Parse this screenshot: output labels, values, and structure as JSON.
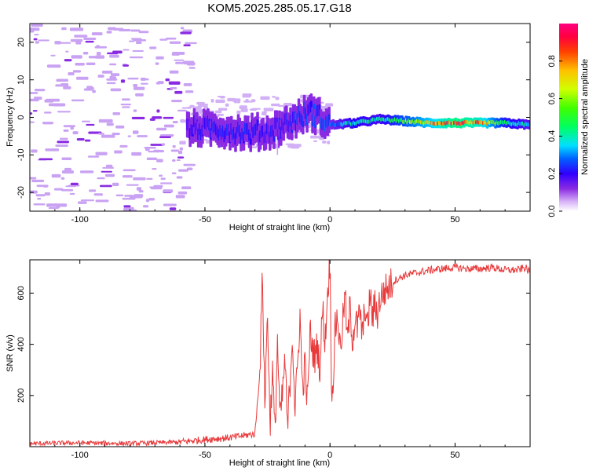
{
  "title": "KOM5.2025.285.05.17.G18",
  "chart_data": [
    {
      "type": "heatmap",
      "title": "KOM5.2025.285.05.17.G18",
      "xlabel": "Height of straight line (km)",
      "ylabel": "Frequency (Hz)",
      "xlim": [
        -120,
        80
      ],
      "ylim": [
        -25,
        25
      ],
      "xticks": [
        -100,
        -50,
        0,
        50
      ],
      "xtick_labels": [
        "-100",
        "-50",
        "0",
        "50"
      ],
      "yticks": [
        -20,
        -10,
        0,
        10,
        20
      ],
      "ytick_labels": [
        "-20",
        "-10",
        "0",
        "10",
        "20"
      ],
      "colorbar": {
        "label": "Normalized spectral amplitude",
        "range": [
          0,
          1
        ],
        "ticks": [
          0.0,
          0.2,
          0.4,
          0.6,
          0.8
        ],
        "tick_labels": [
          "0.0",
          "0.2",
          "0.4",
          "0.6",
          "0.8"
        ],
        "colors": [
          "#ffffff",
          "#d8b4f8",
          "#8a2be2",
          "#3000ff",
          "#0060ff",
          "#00e0ff",
          "#00ff60",
          "#40ff00",
          "#d0ff00",
          "#ffc000",
          "#ff4000",
          "#ff0040",
          "#ff0080"
        ]
      },
      "ridge": [
        {
          "x": -55,
          "y": -3,
          "a": 0.2
        },
        {
          "x": -45,
          "y": -3,
          "a": 0.22
        },
        {
          "x": -35,
          "y": -4,
          "a": 0.22
        },
        {
          "x": -25,
          "y": -4,
          "a": 0.2
        },
        {
          "x": -15,
          "y": -1,
          "a": 0.22
        },
        {
          "x": -8,
          "y": 1.5,
          "a": 0.25
        },
        {
          "x": -4,
          "y": 0,
          "a": 0.25
        },
        {
          "x": 0,
          "y": -2,
          "a": 0.28
        },
        {
          "x": 10,
          "y": -1.5,
          "a": 0.45
        },
        {
          "x": 20,
          "y": -0.5,
          "a": 0.4
        },
        {
          "x": 30,
          "y": -1,
          "a": 0.6
        },
        {
          "x": 40,
          "y": -1.5,
          "a": 0.75
        },
        {
          "x": 50,
          "y": -1.5,
          "a": 0.95
        },
        {
          "x": 60,
          "y": -1.5,
          "a": 0.85
        },
        {
          "x": 70,
          "y": -1.5,
          "a": 0.5
        },
        {
          "x": 80,
          "y": -2,
          "a": 0.35
        }
      ]
    },
    {
      "type": "line",
      "xlabel": "Height of straight line (km)",
      "ylabel": "SNR (v/v)",
      "xlim": [
        -120,
        80
      ],
      "ylim": [
        0,
        730
      ],
      "xticks": [
        -100,
        -50,
        0,
        50
      ],
      "xtick_labels": [
        "-100",
        "-50",
        "0",
        "50"
      ],
      "yticks": [
        200,
        400,
        600
      ],
      "ytick_labels": [
        "200",
        "400",
        "600"
      ],
      "color": "#e8393a",
      "series": [
        {
          "name": "SNR",
          "x": [
            -120,
            -100,
            -80,
            -60,
            -50,
            -40,
            -30,
            -28,
            -27,
            -26,
            -25,
            -24,
            -23,
            -22,
            -21,
            -20,
            -19,
            -18,
            -17,
            -16,
            -15,
            -14,
            -13,
            -12,
            -11,
            -10,
            -9,
            -8,
            -7,
            -6,
            -5,
            -4,
            -3,
            -2,
            -1,
            0,
            0.5,
            1,
            2,
            3,
            4,
            5,
            6,
            7,
            8,
            9,
            10,
            11,
            12,
            13,
            14,
            15,
            16,
            17,
            18,
            19,
            20,
            22,
            24,
            26,
            28,
            30,
            35,
            40,
            45,
            50,
            55,
            60,
            65,
            70,
            75,
            78,
            80
          ],
          "y": [
            12,
            15,
            12,
            18,
            28,
            35,
            50,
            300,
            680,
            150,
            550,
            80,
            300,
            40,
            420,
            100,
            200,
            350,
            60,
            250,
            450,
            140,
            300,
            520,
            220,
            320,
            160,
            450,
            380,
            350,
            400,
            300,
            550,
            400,
            600,
            730,
            300,
            200,
            450,
            520,
            380,
            470,
            600,
            400,
            550,
            420,
            500,
            460,
            530,
            420,
            560,
            450,
            600,
            500,
            560,
            520,
            580,
            610,
            630,
            650,
            660,
            670,
            680,
            690,
            695,
            700,
            695,
            695,
            700,
            690,
            690,
            700,
            680
          ]
        }
      ]
    }
  ]
}
